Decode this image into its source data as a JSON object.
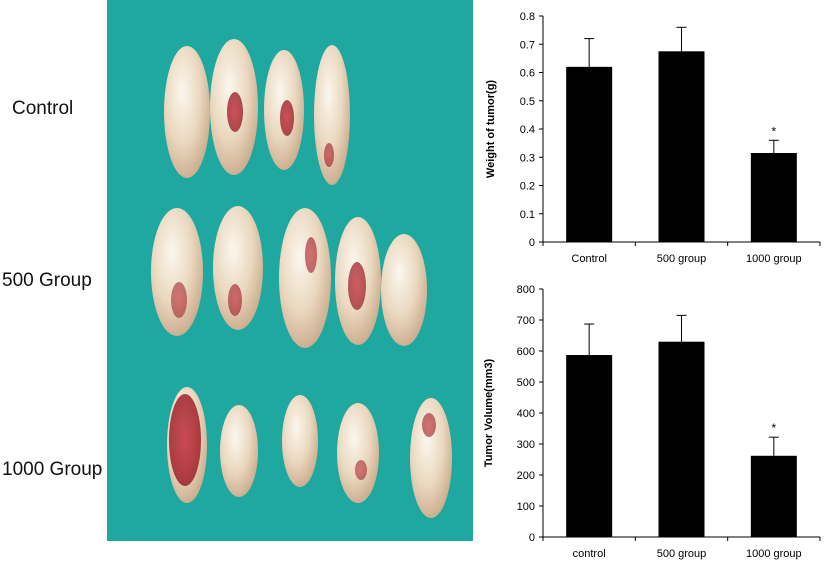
{
  "labels": {
    "control": "Control",
    "group500": "500 Group",
    "group1000": "1000 Group"
  },
  "photo": {
    "background_color": "#1fa8a0",
    "rows": [
      {
        "tumor_count": 4
      },
      {
        "tumor_count": 5
      },
      {
        "tumor_count": 5
      }
    ]
  },
  "chart_data": [
    {
      "type": "bar",
      "categories": [
        "Control",
        "500 group",
        "1000 group"
      ],
      "values": [
        0.62,
        0.675,
        0.315
      ],
      "errors": [
        0.1,
        0.085,
        0.045
      ],
      "significance": [
        "",
        "",
        "*"
      ],
      "ylabel": "Weight of tumor(g)",
      "xlabel": "",
      "ylim": [
        0,
        0.8
      ],
      "yticks": [
        "0",
        "0.1",
        "0.2",
        "0.3",
        "0.4",
        "0.5",
        "0.6",
        "0.7",
        "0.8"
      ],
      "bar_color": "#000000",
      "grid": false
    },
    {
      "type": "bar",
      "categories": [
        "control",
        "500 group",
        "1000 group"
      ],
      "values": [
        587,
        630,
        262
      ],
      "errors": [
        100,
        85,
        60
      ],
      "significance": [
        "",
        "",
        "*"
      ],
      "ylabel": "Tumor Volume(mm3)",
      "xlabel": "",
      "ylim": [
        0,
        800
      ],
      "yticks": [
        "0",
        "100",
        "200",
        "300",
        "400",
        "500",
        "600",
        "700",
        "800"
      ],
      "bar_color": "#000000",
      "grid": false
    }
  ]
}
